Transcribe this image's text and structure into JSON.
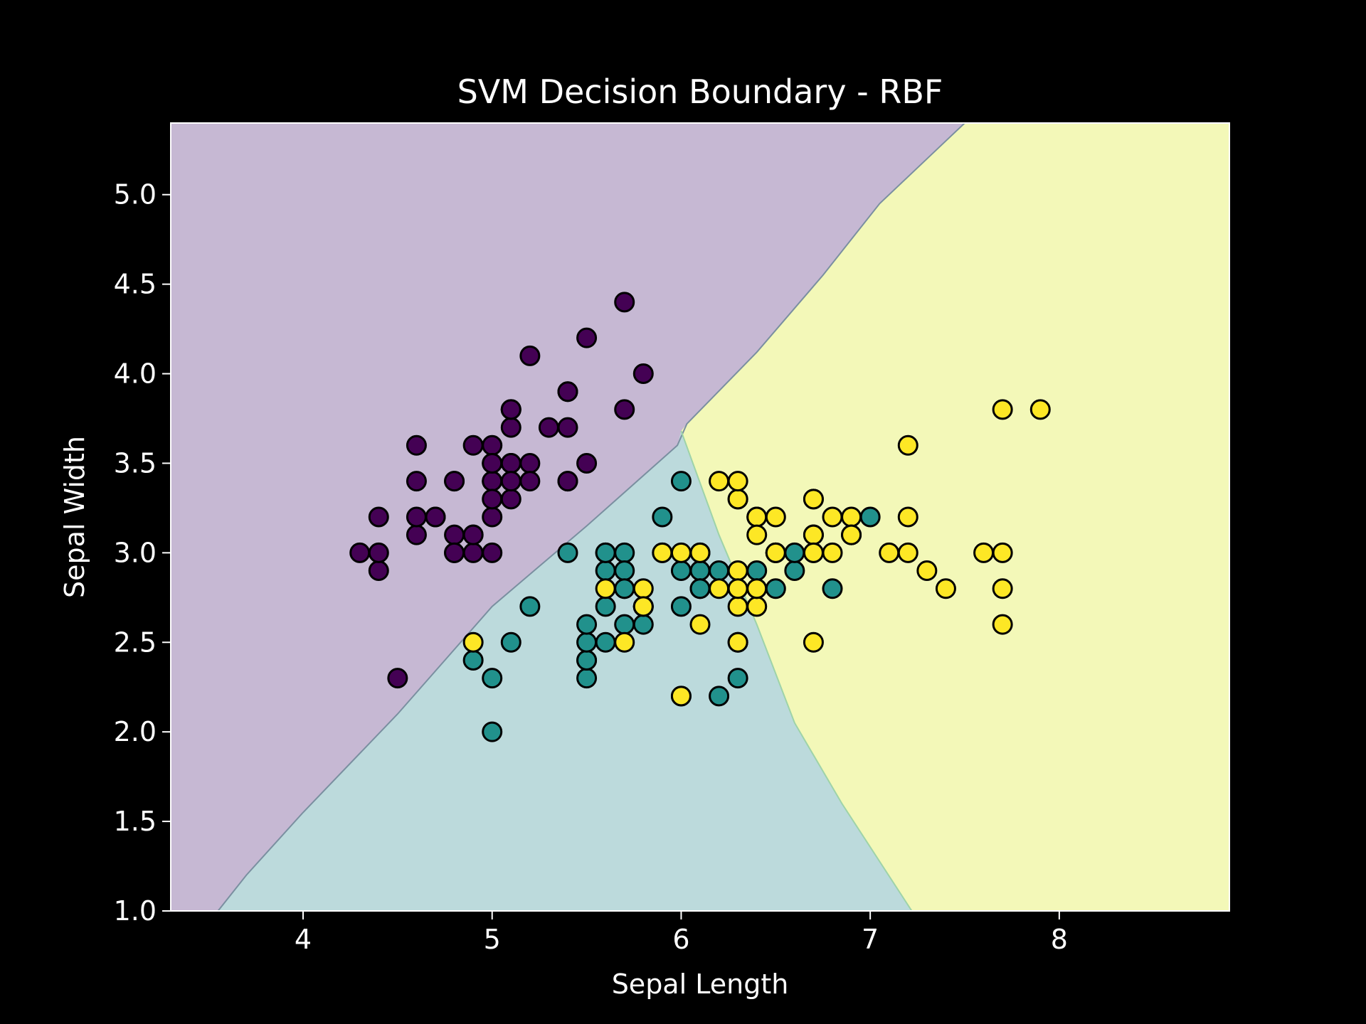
{
  "chart_data": {
    "type": "scatter",
    "title": "SVM Decision Boundary - RBF",
    "xlabel": "Sepal Length",
    "ylabel": "Sepal Width",
    "xlim": [
      3.3,
      8.9
    ],
    "ylim": [
      1.0,
      5.4
    ],
    "x_ticks": [
      4,
      5,
      6,
      7,
      8
    ],
    "y_ticks": [
      1.0,
      1.5,
      2.0,
      2.5,
      3.0,
      3.5,
      4.0,
      4.5,
      5.0
    ],
    "grid": false,
    "legend": "none",
    "colors": {
      "background": "#000000",
      "foreground": "#ffffff",
      "class_0": "#440154",
      "class_1": "#21918c",
      "class_2": "#fde725",
      "region_0": "#c6b8d3",
      "region_1": "#bcdadc",
      "region_2": "#f3f8b8",
      "marker_edge": "#000000"
    },
    "decision_regions": {
      "region_0_boundary": [
        [
          3.55,
          1.0
        ],
        [
          3.7,
          1.2
        ],
        [
          4.0,
          1.55
        ],
        [
          4.5,
          2.1
        ],
        [
          5.0,
          2.7
        ],
        [
          5.5,
          3.15
        ],
        [
          5.98,
          3.6
        ],
        [
          6.03,
          3.72
        ],
        [
          6.4,
          4.12
        ],
        [
          6.75,
          4.55
        ],
        [
          7.05,
          4.95
        ],
        [
          7.4,
          5.3
        ],
        [
          7.5,
          5.4
        ]
      ],
      "region_1_2_boundary": [
        [
          6.0,
          3.68
        ],
        [
          6.2,
          3.1
        ],
        [
          6.4,
          2.6
        ],
        [
          6.6,
          2.05
        ],
        [
          6.85,
          1.6
        ],
        [
          7.22,
          1.0
        ]
      ]
    },
    "series": [
      {
        "class": 0,
        "points": [
          [
            5.1,
            3.5
          ],
          [
            4.9,
            3.0
          ],
          [
            4.7,
            3.2
          ],
          [
            4.6,
            3.1
          ],
          [
            5.0,
            3.6
          ],
          [
            5.4,
            3.9
          ],
          [
            4.6,
            3.4
          ],
          [
            5.0,
            3.4
          ],
          [
            4.4,
            2.9
          ],
          [
            4.9,
            3.1
          ],
          [
            5.4,
            3.7
          ],
          [
            4.8,
            3.4
          ],
          [
            4.8,
            3.0
          ],
          [
            4.3,
            3.0
          ],
          [
            5.8,
            4.0
          ],
          [
            5.7,
            4.4
          ],
          [
            5.4,
            3.9
          ],
          [
            5.1,
            3.5
          ],
          [
            5.7,
            3.8
          ],
          [
            5.1,
            3.8
          ],
          [
            5.4,
            3.4
          ],
          [
            5.1,
            3.7
          ],
          [
            4.6,
            3.6
          ],
          [
            5.1,
            3.3
          ],
          [
            4.8,
            3.4
          ],
          [
            5.0,
            3.0
          ],
          [
            5.0,
            3.4
          ],
          [
            5.2,
            3.5
          ],
          [
            5.2,
            3.4
          ],
          [
            4.7,
            3.2
          ],
          [
            4.8,
            3.1
          ],
          [
            5.4,
            3.4
          ],
          [
            5.2,
            4.1
          ],
          [
            5.5,
            4.2
          ],
          [
            4.9,
            3.1
          ],
          [
            5.0,
            3.2
          ],
          [
            5.5,
            3.5
          ],
          [
            4.9,
            3.6
          ],
          [
            4.4,
            3.0
          ],
          [
            5.1,
            3.4
          ],
          [
            5.0,
            3.5
          ],
          [
            4.5,
            2.3
          ],
          [
            4.4,
            3.2
          ],
          [
            5.0,
            3.5
          ],
          [
            5.1,
            3.8
          ],
          [
            4.8,
            3.0
          ],
          [
            5.1,
            3.8
          ],
          [
            4.6,
            3.2
          ],
          [
            5.3,
            3.7
          ],
          [
            5.0,
            3.3
          ]
        ]
      },
      {
        "class": 1,
        "points": [
          [
            7.0,
            3.2
          ],
          [
            6.4,
            3.2
          ],
          [
            6.9,
            3.1
          ],
          [
            5.5,
            2.3
          ],
          [
            6.5,
            2.8
          ],
          [
            5.7,
            2.8
          ],
          [
            6.3,
            3.3
          ],
          [
            4.9,
            2.4
          ],
          [
            6.6,
            2.9
          ],
          [
            5.2,
            2.7
          ],
          [
            5.0,
            2.0
          ],
          [
            5.9,
            3.0
          ],
          [
            6.0,
            2.2
          ],
          [
            6.1,
            2.9
          ],
          [
            5.6,
            2.9
          ],
          [
            6.7,
            3.1
          ],
          [
            5.6,
            3.0
          ],
          [
            5.8,
            2.7
          ],
          [
            6.2,
            2.2
          ],
          [
            5.6,
            2.5
          ],
          [
            5.9,
            3.2
          ],
          [
            6.1,
            2.8
          ],
          [
            6.3,
            2.5
          ],
          [
            6.1,
            2.8
          ],
          [
            6.4,
            2.9
          ],
          [
            6.6,
            3.0
          ],
          [
            6.8,
            2.8
          ],
          [
            6.7,
            3.0
          ],
          [
            6.0,
            2.9
          ],
          [
            5.7,
            2.6
          ],
          [
            5.5,
            2.4
          ],
          [
            5.5,
            2.4
          ],
          [
            5.8,
            2.7
          ],
          [
            6.0,
            2.7
          ],
          [
            5.4,
            3.0
          ],
          [
            6.0,
            3.4
          ],
          [
            6.7,
            3.1
          ],
          [
            6.3,
            2.3
          ],
          [
            5.6,
            3.0
          ],
          [
            5.5,
            2.5
          ],
          [
            5.5,
            2.6
          ],
          [
            6.1,
            3.0
          ],
          [
            5.8,
            2.6
          ],
          [
            5.0,
            2.3
          ],
          [
            5.6,
            2.7
          ],
          [
            5.7,
            3.0
          ],
          [
            5.7,
            2.9
          ],
          [
            6.2,
            2.9
          ],
          [
            5.1,
            2.5
          ],
          [
            5.7,
            2.8
          ]
        ]
      },
      {
        "class": 2,
        "points": [
          [
            6.3,
            3.3
          ],
          [
            5.8,
            2.7
          ],
          [
            7.1,
            3.0
          ],
          [
            6.3,
            2.9
          ],
          [
            6.5,
            3.0
          ],
          [
            7.6,
            3.0
          ],
          [
            4.9,
            2.5
          ],
          [
            7.3,
            2.9
          ],
          [
            6.7,
            2.5
          ],
          [
            7.2,
            3.6
          ],
          [
            6.5,
            3.2
          ],
          [
            6.4,
            2.7
          ],
          [
            6.8,
            3.0
          ],
          [
            5.7,
            2.5
          ],
          [
            5.8,
            2.8
          ],
          [
            6.4,
            3.2
          ],
          [
            6.5,
            3.0
          ],
          [
            7.7,
            3.8
          ],
          [
            7.7,
            2.6
          ],
          [
            6.0,
            2.2
          ],
          [
            6.9,
            3.2
          ],
          [
            5.6,
            2.8
          ],
          [
            7.7,
            2.8
          ],
          [
            6.3,
            2.7
          ],
          [
            6.7,
            3.3
          ],
          [
            7.2,
            3.2
          ],
          [
            6.2,
            2.8
          ],
          [
            6.1,
            3.0
          ],
          [
            6.4,
            2.8
          ],
          [
            7.2,
            3.0
          ],
          [
            7.4,
            2.8
          ],
          [
            7.9,
            3.8
          ],
          [
            6.4,
            2.8
          ],
          [
            6.3,
            2.8
          ],
          [
            6.1,
            2.6
          ],
          [
            7.7,
            3.0
          ],
          [
            6.3,
            3.4
          ],
          [
            6.4,
            3.1
          ],
          [
            6.0,
            3.0
          ],
          [
            6.9,
            3.1
          ],
          [
            6.7,
            3.1
          ],
          [
            6.9,
            3.1
          ],
          [
            5.8,
            2.7
          ],
          [
            6.8,
            3.2
          ],
          [
            6.7,
            3.3
          ],
          [
            6.7,
            3.0
          ],
          [
            6.3,
            2.5
          ],
          [
            6.5,
            3.0
          ],
          [
            6.2,
            3.4
          ],
          [
            5.9,
            3.0
          ]
        ]
      }
    ]
  }
}
